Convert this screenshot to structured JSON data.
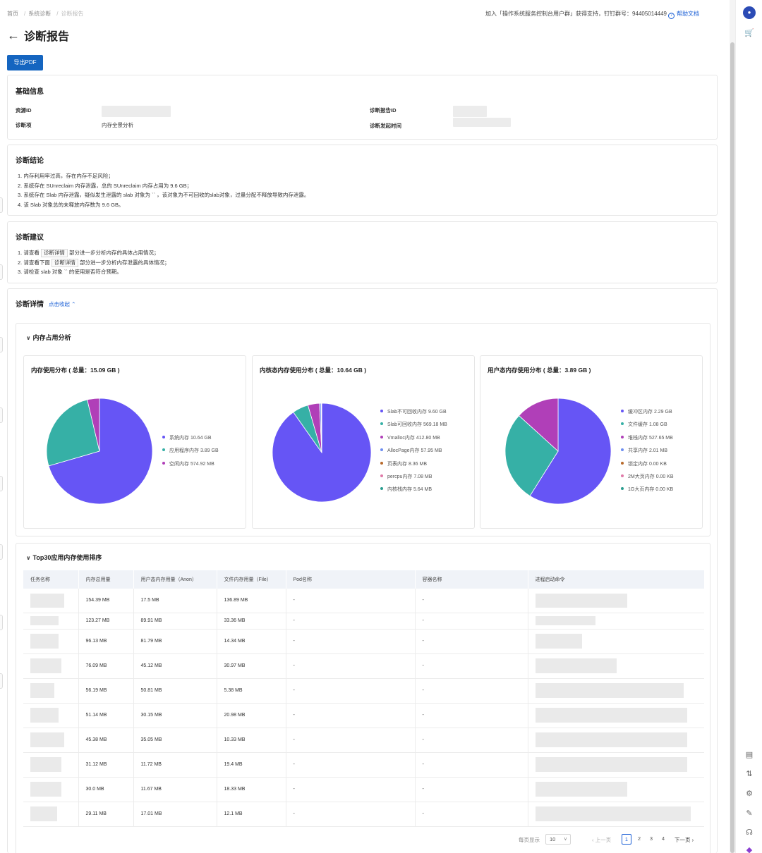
{
  "breadcrumb": [
    "首页",
    "系统诊断",
    "诊断报告"
  ],
  "support_text": "加入「操作系统服务控制台用户群」获得支持，钉钉群号：94405014449",
  "help_label": "帮助文档",
  "page_title": "诊断报告",
  "export_label": "导出PDF",
  "basic": {
    "title": "基础信息",
    "resource_id_label": "资源ID",
    "report_id_label": "诊断报告ID",
    "item_label": "诊断项",
    "item_value": "内存全景分析",
    "time_label": "诊断发起时间"
  },
  "conclusion": {
    "title": "诊断结论",
    "items": [
      "1. 内存利用率过高，存在内存不足风险；",
      "2. 系统存在 SUnreclaim 内存泄露，总的 SUnreclaim 内存占用为 9.6 GB；",
      "3. 系统存在 Slab 内存泄露，疑似发生泄露的 slab 对象为 `` ，该对象为不可回收的slab对象，过量分配不释放导致内存泄露。",
      "4. 该 Slab 对象总的未释放内存数为 9.6 GB。"
    ]
  },
  "advice": {
    "title": "诊断建议",
    "line1_pre": "1. 请查看",
    "line1_tag": "诊断详情",
    "line1_post": "部分进一步分析内存的具体占用情况；",
    "line2_pre": "2. 请查看下面",
    "line2_tag": "诊断详情",
    "line2_post": "部分进一步分析内存泄露的具体情况；",
    "line3": "3. 请检查 slab 对象 `` 的使用是否符合预期。"
  },
  "details": {
    "title": "诊断详情",
    "collapse_label": "点击收起",
    "mem_panel_title": "内存占用分析",
    "top_panel_title": "Top30应用内存使用排序"
  },
  "chart_data": [
    {
      "type": "pie",
      "title": "内存使用分布 ( 总量：15.09 GB )",
      "slices": [
        {
          "label": "系统内存",
          "value_text": "10.64 GB",
          "value": 10.64,
          "color": "#6655f5"
        },
        {
          "label": "应用程序内存",
          "value_text": "3.89 GB",
          "value": 3.89,
          "color": "#36b0a6"
        },
        {
          "label": "空闲内存",
          "value_text": "574.92 MB",
          "value": 0.5615,
          "color": "#b03fb8"
        }
      ]
    },
    {
      "type": "pie",
      "title": "内核态内存使用分布 ( 总量：10.64 GB )",
      "slices": [
        {
          "label": "Slab不可回收内存",
          "value_text": "9.60 GB",
          "value": 9830.4,
          "color": "#6655f5"
        },
        {
          "label": "Slab可回收内存",
          "value_text": "569.18 MB",
          "value": 569.18,
          "color": "#36b0a6"
        },
        {
          "label": "Vmalloc内存",
          "value_text": "412.80 MB",
          "value": 412.8,
          "color": "#b03fb8"
        },
        {
          "label": "AllocPage内存",
          "value_text": "57.95 MB",
          "value": 57.95,
          "color": "#6e8ef0"
        },
        {
          "label": "页表内存",
          "value_text": "8.36 MB",
          "value": 8.36,
          "color": "#b86a2c"
        },
        {
          "label": "percpu内存",
          "value_text": "7.08 MB",
          "value": 7.08,
          "color": "#e07aa8"
        },
        {
          "label": "内核栈内存",
          "value_text": "5.64 MB",
          "value": 5.64,
          "color": "#2a9d8f"
        }
      ]
    },
    {
      "type": "pie",
      "title": "用户态内存使用分布 ( 总量：3.89 GB )",
      "slices": [
        {
          "label": "缓冲区内存",
          "value_text": "2.29 GB",
          "value": 2.29,
          "color": "#6655f5"
        },
        {
          "label": "文件缓存",
          "value_text": "1.08 GB",
          "value": 1.08,
          "color": "#36b0a6"
        },
        {
          "label": "堆栈内存",
          "value_text": "527.65 MB",
          "value": 0.515,
          "color": "#b03fb8"
        },
        {
          "label": "共享内存",
          "value_text": "2.01 MB",
          "value": 0,
          "color": "#6e8ef0"
        },
        {
          "label": "锁定内存",
          "value_text": "0.00 KB",
          "value": 0,
          "color": "#b86a2c"
        },
        {
          "label": "2M大页内存",
          "value_text": "0.00 KB",
          "value": 0,
          "color": "#e07aa8"
        },
        {
          "label": "1G大页内存",
          "value_text": "0.00 KB",
          "value": 0,
          "color": "#2a9d8f"
        }
      ]
    }
  ],
  "table": {
    "columns": [
      "任务名称",
      "内存总用量",
      "用户态内存用量（Anon）",
      "文件内存用量（File）",
      "Pod名称",
      "容器名称",
      "进程启动命令"
    ],
    "rows": [
      [
        "154.39 MB",
        "17.5 MB",
        "136.89 MB",
        "-",
        "-"
      ],
      [
        "123.27 MB",
        "89.91 MB",
        "33.36 MB",
        "-",
        "-"
      ],
      [
        "96.13 MB",
        "81.79 MB",
        "14.34 MB",
        "-",
        "-"
      ],
      [
        "76.09 MB",
        "45.12 MB",
        "30.97 MB",
        "-",
        "-"
      ],
      [
        "56.19 MB",
        "50.81 MB",
        "5.38 MB",
        "-",
        "-"
      ],
      [
        "51.14 MB",
        "30.15 MB",
        "20.98 MB",
        "-",
        "-"
      ],
      [
        "45.38 MB",
        "35.05 MB",
        "10.33 MB",
        "-",
        "-"
      ],
      [
        "31.12 MB",
        "11.72 MB",
        "19.4 MB",
        "-",
        "-"
      ],
      [
        "30.0 MB",
        "11.67 MB",
        "18.33 MB",
        "-",
        "-"
      ],
      [
        "29.11 MB",
        "17.01 MB",
        "12.1 MB",
        "-",
        "-"
      ]
    ]
  },
  "pager": {
    "per_page_label": "每页显示",
    "per_page_value": "10",
    "prev_label": "上一页",
    "pages": [
      "1",
      "2",
      "3",
      "4"
    ],
    "next_label": "下一页"
  }
}
